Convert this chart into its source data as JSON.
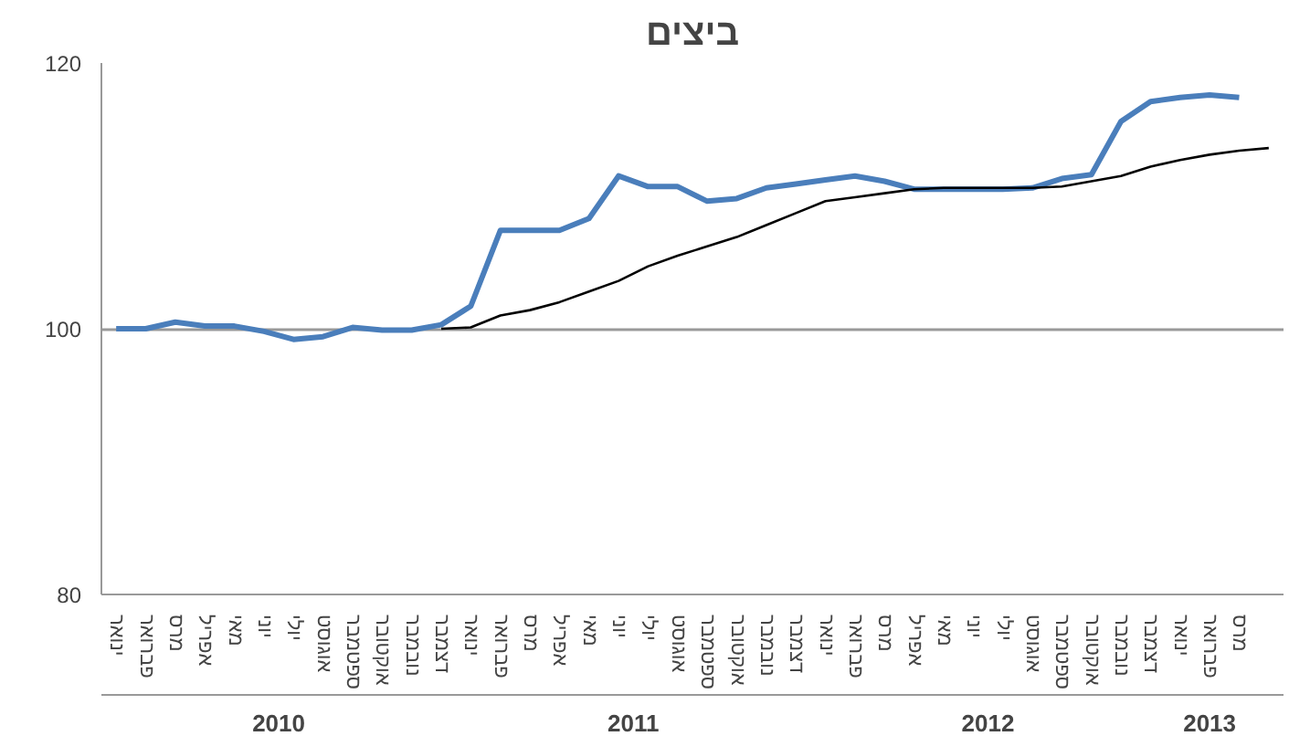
{
  "chart_data": {
    "type": "line",
    "title": "ביצים",
    "categories": [
      "ינואר",
      "פברואר",
      "מרס",
      "אפריל",
      "מאי",
      "יוני",
      "יולי",
      "אוגוסט",
      "ספטמבר",
      "אוקטובר",
      "נובמבר",
      "דצמבר",
      "ינואר",
      "פברואר",
      "מרס",
      "אפריל",
      "מאי",
      "יוני",
      "יולי",
      "אוגוסט",
      "ספטמבר",
      "אוקטובר",
      "נובמבר",
      "דצמבר",
      "ינואר",
      "פברואר",
      "מרס",
      "אפריל",
      "מאי",
      "יוני",
      "יולי",
      "אוגוסט",
      "ספטמבר",
      "אוקטובר",
      "נובמבר",
      "דצמבר",
      "ינואר",
      "פברואר",
      "מרס",
      null
    ],
    "series": [
      {
        "color": "#4a7ebb",
        "values": [
          100,
          100,
          100.5,
          100.2,
          100.2,
          99.8,
          99.2,
          99.4,
          100.1,
          99.9,
          99.9,
          100.3,
          101.7,
          107.4,
          107.4,
          107.4,
          108.3,
          111.5,
          110.7,
          110.7,
          109.6,
          109.8,
          110.6,
          110.9,
          111.2,
          111.5,
          111.1,
          110.5,
          110.5,
          110.5,
          110.5,
          110.6,
          111.3,
          111.6,
          115.6,
          117.1,
          117.4,
          117.6,
          117.4,
          null
        ]
      },
      {
        "color": "#000000",
        "values": [
          null,
          null,
          null,
          null,
          null,
          null,
          null,
          null,
          null,
          null,
          null,
          100,
          100.1,
          101,
          101.4,
          102,
          102.8,
          103.6,
          104.7,
          105.5,
          106.2,
          106.9,
          107.8,
          108.7,
          109.6,
          109.9,
          110.2,
          110.5,
          110.6,
          110.6,
          110.6,
          110.6,
          110.7,
          111.1,
          111.5,
          112.2,
          112.7,
          113.1,
          113.4,
          113.6
        ]
      }
    ],
    "annotations": [
      "2010",
      "2011",
      "2012",
      "2013"
    ],
    "ylim": [
      80,
      120
    ],
    "yticks": [
      80,
      100,
      120
    ],
    "grid": "y",
    "marker": "none",
    "line_style": "solid"
  }
}
